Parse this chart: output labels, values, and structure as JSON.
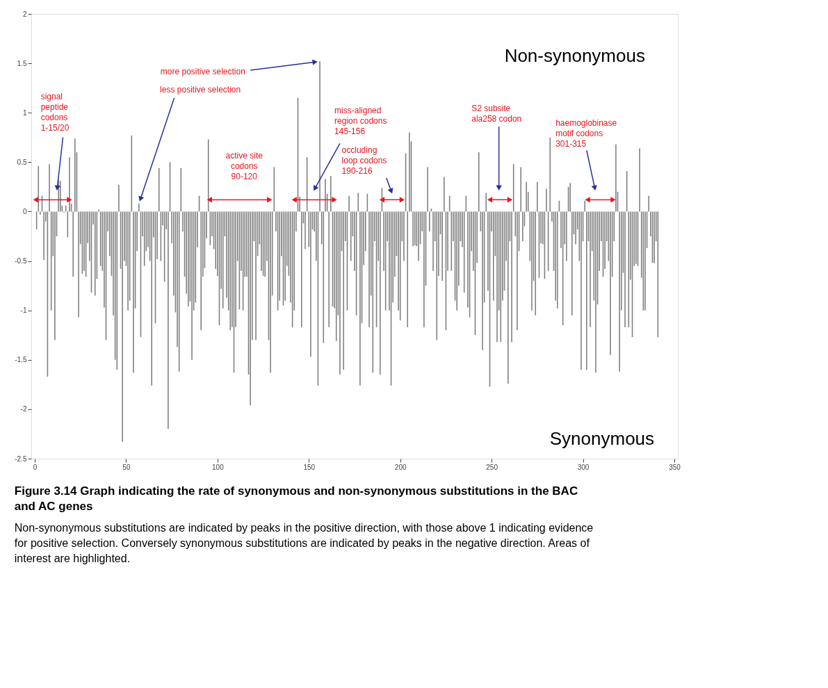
{
  "chart_data": {
    "type": "bar",
    "title": "Figure 3.14 Graph indicating the rate of synonymous and non-synonymous substitutions in the BAC and AC genes",
    "color": "#808080",
    "x": [
      1,
      2,
      3,
      4,
      5,
      6,
      7,
      8,
      9,
      10,
      11,
      12,
      13,
      14,
      15,
      16,
      17,
      18,
      19,
      20,
      21,
      22,
      23,
      24,
      25,
      26,
      27,
      28,
      29,
      30,
      31,
      32,
      33,
      34,
      35,
      36,
      37,
      38,
      39,
      40,
      41,
      42,
      43,
      44,
      45,
      46,
      47,
      48,
      49,
      50,
      51,
      52,
      53,
      54,
      55,
      56,
      57,
      58,
      59,
      60,
      61,
      62,
      63,
      64,
      65,
      66,
      67,
      68,
      69,
      70,
      71,
      72,
      73,
      74,
      75,
      76,
      77,
      78,
      79,
      80,
      81,
      82,
      83,
      84,
      85,
      86,
      87,
      88,
      89,
      90,
      91,
      92,
      93,
      94,
      95,
      96,
      97,
      98,
      99,
      100,
      101,
      102,
      103,
      104,
      105,
      106,
      107,
      108,
      109,
      110,
      111,
      112,
      113,
      114,
      115,
      116,
      117,
      118,
      119,
      120,
      121,
      122,
      123,
      124,
      125,
      126,
      127,
      128,
      129,
      130,
      131,
      132,
      133,
      134,
      135,
      136,
      137,
      138,
      139,
      140,
      141,
      142,
      143,
      144,
      145,
      146,
      147,
      148,
      149,
      150,
      151,
      152,
      153,
      154,
      155,
      156,
      157,
      158,
      159,
      160,
      161,
      162,
      163,
      164,
      165,
      166,
      167,
      168,
      169,
      170,
      171,
      172,
      173,
      174,
      175,
      176,
      177,
      178,
      179,
      180,
      181,
      182,
      183,
      184,
      185,
      186,
      187,
      188,
      189,
      190,
      191,
      192,
      193,
      194,
      195,
      196,
      197,
      198,
      199,
      200,
      201,
      202,
      203,
      204,
      205,
      206,
      207,
      208,
      209,
      210,
      211,
      212,
      213,
      214,
      215,
      216,
      217,
      218,
      219,
      220,
      221,
      222,
      223,
      224,
      225,
      226,
      227,
      228,
      229,
      230,
      231,
      232,
      233,
      234,
      235,
      236,
      237,
      238,
      239,
      240,
      241,
      242,
      243,
      244,
      245,
      246,
      247,
      248,
      249,
      250,
      251,
      252,
      253,
      254,
      255,
      256,
      257,
      258,
      259,
      260,
      261,
      262,
      263,
      264,
      265,
      266,
      267,
      268,
      269,
      270,
      271,
      272,
      273,
      274,
      275,
      276,
      277,
      278,
      279,
      280,
      281,
      282,
      283,
      284,
      285,
      286,
      287,
      288,
      289,
      290,
      291,
      292,
      293,
      294,
      295,
      296,
      297,
      298,
      299,
      300,
      301,
      302,
      303,
      304,
      305,
      306,
      307,
      308,
      309,
      310,
      311,
      312,
      313,
      314,
      315,
      316,
      317,
      318,
      319,
      320,
      321,
      322,
      323,
      324,
      325,
      326,
      327,
      328,
      329,
      330,
      331,
      332,
      333,
      334,
      335,
      336,
      337,
      338,
      339,
      340,
      341
    ],
    "values": [
      -0.18,
      0.46,
      -0.03,
      0.16,
      -0.49,
      -0.1,
      -1.67,
      0.48,
      -1.0,
      -0.45,
      -1.3,
      -0.25,
      0.32,
      0.31,
      0.06,
      -0.01,
      0.06,
      -0.26,
      0.55,
      0.08,
      -0.66,
      0.74,
      0.6,
      -1.07,
      -0.33,
      -0.63,
      -0.6,
      -0.66,
      -0.32,
      -0.5,
      -0.82,
      -0.13,
      -0.85,
      -0.68,
      0.02,
      -0.55,
      -0.6,
      -0.97,
      -1.3,
      -0.2,
      -0.45,
      -0.65,
      -1.05,
      -1.5,
      -1.6,
      0.27,
      -0.58,
      -2.33,
      -0.5,
      -0.55,
      -1.0,
      -0.9,
      0.77,
      -1.63,
      -0.98,
      -0.4,
      0.08,
      -1.27,
      -0.25,
      -0.55,
      -0.4,
      -0.36,
      -0.5,
      -1.76,
      -0.26,
      -1.13,
      -0.48,
      0.44,
      -0.5,
      -0.14,
      -0.71,
      -0.18,
      -2.2,
      0.5,
      -0.32,
      -0.85,
      -1.02,
      -1.37,
      -1.62,
      0.44,
      -0.2,
      -0.66,
      -0.83,
      -0.96,
      -0.91,
      -1.5,
      -1.0,
      -0.92,
      -0.36,
      0.16,
      -1.2,
      -0.66,
      -0.57,
      -0.27,
      0.73,
      -0.34,
      -0.25,
      -0.38,
      -0.58,
      -0.65,
      -1.15,
      -0.78,
      -0.98,
      -0.25,
      -0.87,
      -1.0,
      -1.2,
      -1.17,
      -1.63,
      -1.17,
      -0.5,
      -0.99,
      -0.6,
      -1.0,
      -0.66,
      -0.66,
      -1.65,
      -1.96,
      -1.3,
      -0.3,
      -1.3,
      -0.45,
      -0.33,
      -0.6,
      -0.65,
      -0.66,
      -0.5,
      -1.3,
      -1.63,
      -0.85,
      0.45,
      -0.2,
      -1.0,
      -0.9,
      -0.45,
      -0.95,
      -0.9,
      -0.55,
      -0.65,
      -0.92,
      -1.17,
      -1.0,
      -0.2,
      1.15,
      0.15,
      -1.17,
      -0.12,
      -0.38,
      0.55,
      -0.36,
      -1.47,
      -0.18,
      -0.2,
      -0.5,
      -1.76,
      1.52,
      -0.33,
      -1.33,
      0.33,
      0.18,
      -1.17,
      0.36,
      -0.96,
      -0.98,
      -1.31,
      -1.05,
      -1.65,
      -0.4,
      -1.6,
      -0.3,
      -1.0,
      0.16,
      -0.5,
      -0.25,
      -0.6,
      -1.05,
      0.19,
      -1.76,
      -1.13,
      -0.54,
      -0.4,
      0.18,
      -1.17,
      -0.85,
      -1.63,
      -0.3,
      -1.17,
      -0.5,
      -1.65,
      0.24,
      -0.6,
      -1.0,
      -0.3,
      -1.0,
      -1.76,
      -0.92,
      -0.66,
      -0.45,
      -1.0,
      -1.1,
      -0.3,
      -0.5,
      0.59,
      -1.17,
      0.8,
      0.71,
      -0.35,
      -0.34,
      -0.35,
      -0.5,
      -0.33,
      -0.2,
      -1.17,
      -0.75,
      0.45,
      -0.2,
      0.03,
      -0.6,
      -0.3,
      -1.3,
      -0.65,
      -0.23,
      -0.7,
      0.35,
      -1.2,
      -0.6,
      0.16,
      -0.6,
      -0.3,
      -0.9,
      -1.0,
      -0.75,
      -0.3,
      -0.36,
      -0.82,
      0.16,
      -0.97,
      -1.07,
      -0.4,
      -0.6,
      -1.25,
      -0.52,
      0.6,
      -0.2,
      -1.4,
      -0.92,
      0.19,
      -0.8,
      -1.77,
      -0.2,
      -0.9,
      -0.45,
      -1.32,
      -1.0,
      -1.32,
      -0.9,
      -0.8,
      -0.5,
      -1.74,
      -0.3,
      -1.32,
      0.48,
      -0.25,
      -1.2,
      -0.4,
      0.45,
      -0.3,
      -0.15,
      0.3,
      0.2,
      -0.5,
      -1.0,
      -0.7,
      -1.05,
      0.3,
      -0.67,
      -0.32,
      -0.33,
      -0.68,
      0.23,
      -0.6,
      0.75,
      -0.1,
      -0.6,
      -0.9,
      -0.98,
      0.11,
      -0.37,
      -1.15,
      -0.33,
      -0.5,
      0.25,
      0.29,
      -1.05,
      -0.23,
      -0.33,
      -0.18,
      -0.5,
      -1.6,
      -0.3,
      0.11,
      -1.6,
      -0.3,
      -1.17,
      -0.4,
      -0.9,
      -1.63,
      -0.94,
      -0.6,
      -0.3,
      -0.66,
      -0.58,
      -0.3,
      -0.5,
      -1.45,
      -0.66,
      -0.3,
      0.68,
      0.2,
      -1.62,
      -1.0,
      -0.62,
      -1.17,
      0.41,
      -1.17,
      -0.69,
      -1.27,
      -0.55,
      -0.53,
      -0.55,
      0.64,
      -0.67,
      -1.0,
      -1.0,
      -0.37,
      0.16,
      -0.25,
      -0.52,
      -0.52,
      -0.3,
      -1.27
    ],
    "xlim": [
      0,
      350
    ],
    "xticks": [
      0,
      50,
      100,
      150,
      200,
      250,
      300,
      350
    ],
    "ylim": [
      -2.5,
      2
    ],
    "yticks": [
      -2.5,
      -2,
      -1.5,
      -1,
      -0.5,
      0,
      0.5,
      1,
      1.5,
      2
    ],
    "grid": false,
    "annotations": [
      "Non-synonymous",
      "Synonymous",
      {
        "text": "more positive selection",
        "x": 156,
        "y": 1.52
      },
      {
        "text": "less positive selection",
        "x": 57,
        "y": 0.08
      },
      {
        "text": "signal\npeptide\ncodons\n1-15/20",
        "x": 12,
        "y": 0.19
      },
      "active site\ncodons\n90-120",
      "miss-aligned\nregion codons\n145-156",
      "occluding\nloop codons\n190-216",
      "S2 subsite\nala258 codon",
      "haemoglobinase\nmotif codons\n301-315",
      "Non-synonymous substitutions are indicated by peaks in the positive direction, with those above 1 indicating evidence for positive selection. Conversely synonymous substitutions are indicated by peaks in the negative direction. Areas of interest are highlighted."
    ]
  }
}
